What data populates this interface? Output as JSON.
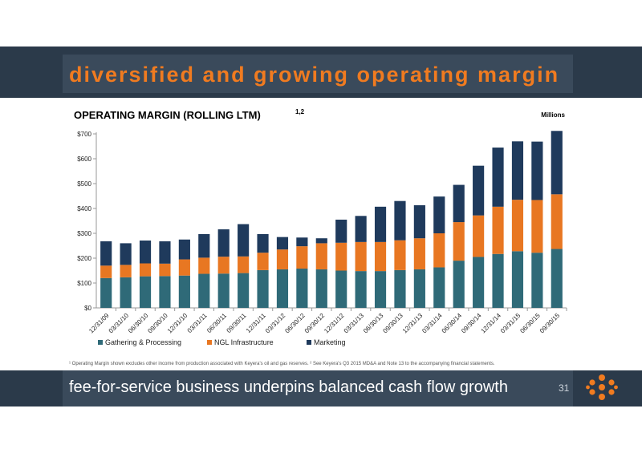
{
  "slide": {
    "title": "diversified and growing operating margin",
    "tagline": "fee-for-service business underpins balanced cash flow growth",
    "page_number": "31",
    "footnote": "¹ Operating Margin shown excludes other income from production associated with Keyera's oil and gas reserves.  ² See Keyera's Q3 2015 MD&A and Note 13 to the accompanying financial statements."
  },
  "colors": {
    "header_bg": "#2b3a4a",
    "title_color": "#f07b20",
    "gathering": "#2f6a78",
    "ngl": "#e87722",
    "marketing": "#1f3a5c"
  },
  "icons": {
    "logo": "keyera-molecule-logo-icon"
  },
  "chart_data": {
    "type": "bar",
    "stacked": true,
    "title": "OPERATING MARGIN (ROLLING LTM)",
    "title_superscript": "1,2",
    "units_label": "Millions",
    "categories": [
      "12/31/09",
      "03/31/10",
      "06/30/10",
      "09/30/10",
      "12/31/10",
      "03/31/11",
      "06/30/11",
      "09/30/11",
      "12/31/11",
      "03/31/12",
      "06/30/12",
      "09/30/12",
      "12/31/12",
      "03/31/13",
      "06/30/13",
      "09/30/13",
      "12/31/13",
      "03/31/14",
      "06/30/14",
      "09/30/14",
      "12/31/14",
      "03/31/15",
      "06/30/15",
      "09/30/15"
    ],
    "series": [
      {
        "name": "Gathering & Processing",
        "values": [
          120,
          123,
          127,
          128,
          130,
          137,
          138,
          140,
          152,
          155,
          158,
          155,
          150,
          148,
          148,
          152,
          155,
          163,
          190,
          205,
          217,
          228,
          222,
          237
        ]
      },
      {
        "name": "NGL Infrastructure",
        "values": [
          50,
          50,
          52,
          50,
          65,
          65,
          68,
          67,
          70,
          80,
          90,
          105,
          112,
          117,
          117,
          120,
          125,
          137,
          155,
          167,
          190,
          207,
          212,
          220
        ]
      },
      {
        "name": "Marketing",
        "values": [
          98,
          87,
          92,
          90,
          80,
          95,
          110,
          130,
          75,
          50,
          35,
          20,
          93,
          105,
          142,
          158,
          133,
          148,
          150,
          200,
          238,
          235,
          235,
          255
        ]
      }
    ],
    "y_ticks": [
      "$0",
      "$100",
      "$200",
      "$300",
      "$400",
      "$500",
      "$600",
      "$700"
    ],
    "ylim": [
      0,
      700
    ],
    "grid": false,
    "legend_position": "bottom-left"
  }
}
